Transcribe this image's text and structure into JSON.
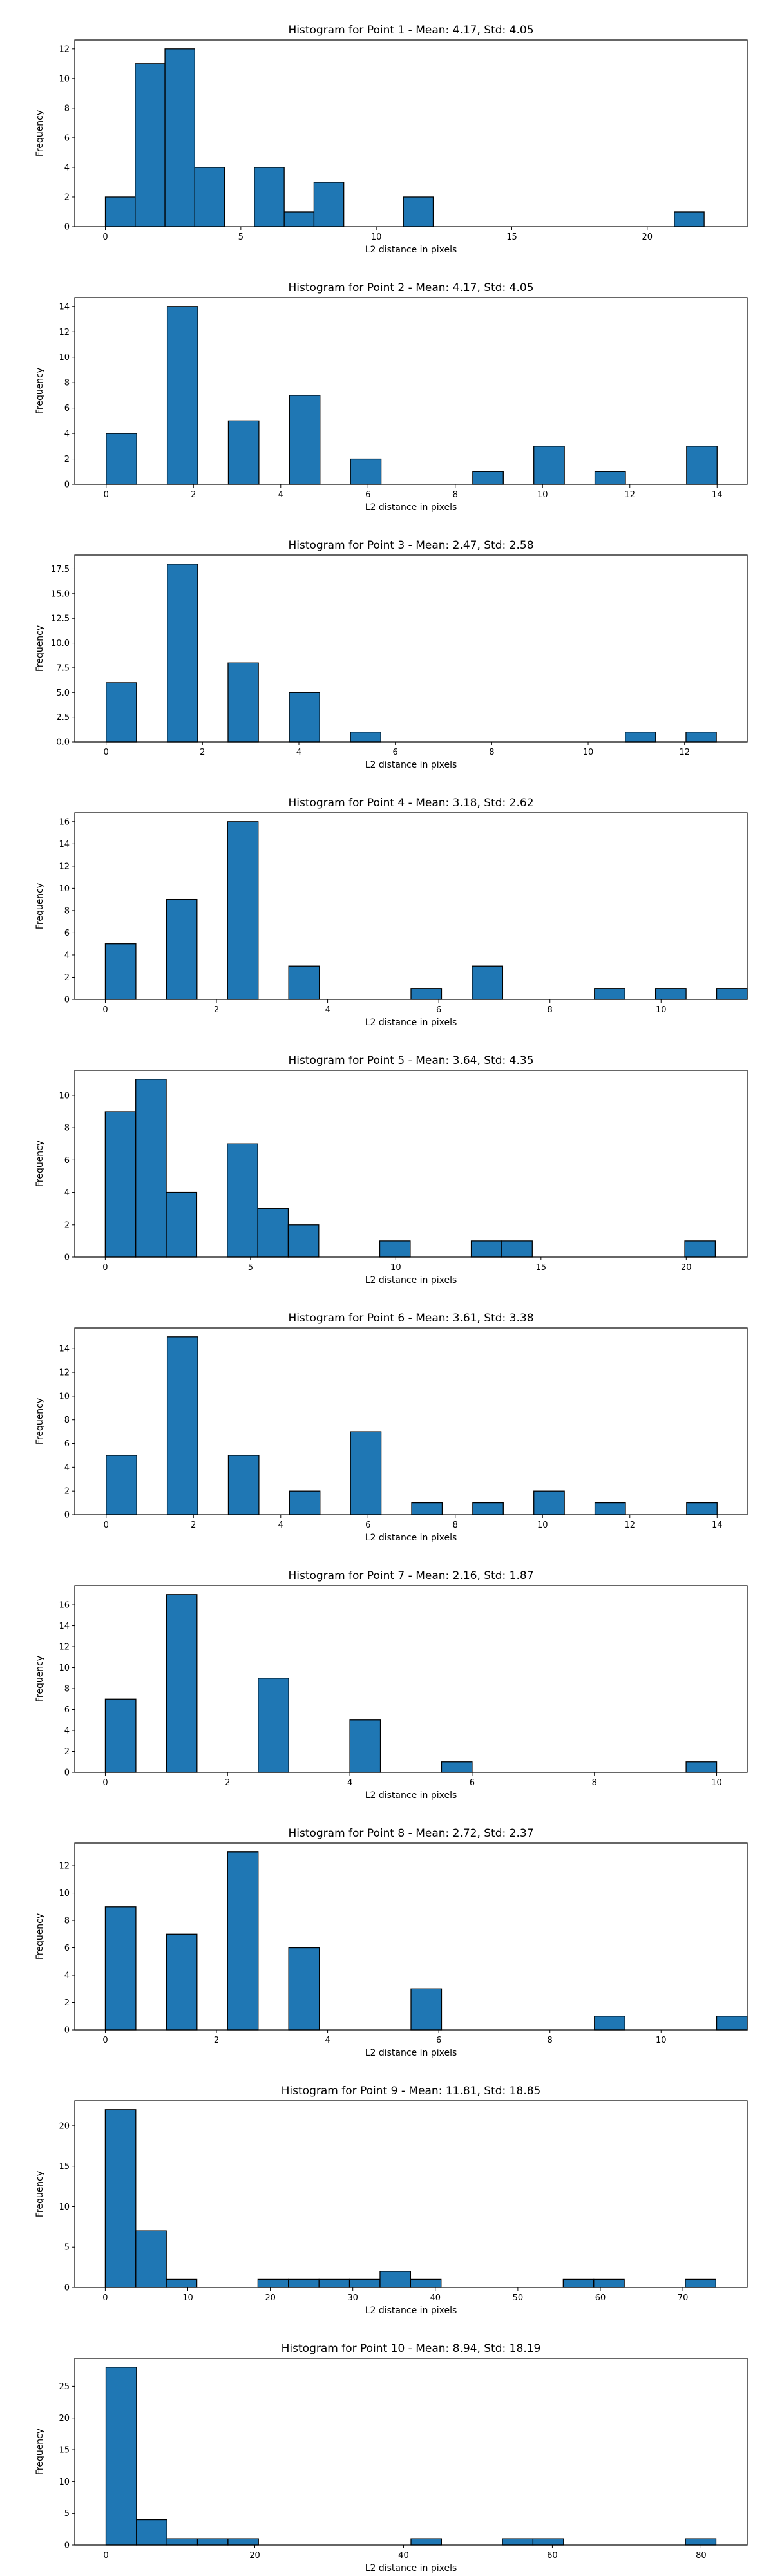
{
  "chart_data": [
    {
      "type": "bar",
      "title": "Histogram for Point 1 - Mean: 4.17, Std: 4.05",
      "xlabel": "L2 distance in pixels",
      "ylabel": "Frequency",
      "xlim": [
        -1.13,
        23.69
      ],
      "ylim": [
        0,
        12.6
      ],
      "xticks": [
        "0",
        "5",
        "10",
        "15",
        "20"
      ],
      "xtick_values": [
        0,
        5,
        10,
        15,
        20
      ],
      "yticks": [
        "0",
        "2",
        "4",
        "6",
        "8",
        "10",
        "12"
      ],
      "ytick_values": [
        0,
        2,
        4,
        6,
        8,
        10,
        12
      ],
      "bin_width": 1.1,
      "bin_starts": [
        0,
        1.1,
        2.2,
        3.3,
        5.5,
        6.6,
        7.7,
        11.0,
        21.0
      ],
      "values": [
        2,
        11,
        12,
        4,
        4,
        1,
        3,
        2,
        1
      ]
    },
    {
      "type": "bar",
      "title": "Histogram for Point 2 - Mean: 4.17, Std: 4.05",
      "xlabel": "L2 distance in pixels",
      "ylabel": "Frequency",
      "xlim": [
        -0.72,
        14.69
      ],
      "ylim": [
        0,
        14.7
      ],
      "xticks": [
        "0",
        "2",
        "4",
        "6",
        "8",
        "10",
        "12",
        "14"
      ],
      "xtick_values": [
        0,
        2,
        4,
        6,
        8,
        10,
        12,
        14
      ],
      "yticks": [
        "0",
        "2",
        "4",
        "6",
        "8",
        "10",
        "12",
        "14"
      ],
      "ytick_values": [
        0,
        2,
        4,
        6,
        8,
        10,
        12,
        14
      ],
      "bin_width": 0.7,
      "bin_starts": [
        0,
        1.4,
        2.8,
        4.2,
        5.6,
        8.4,
        9.8,
        11.2,
        13.3
      ],
      "values": [
        4,
        14,
        5,
        7,
        2,
        1,
        3,
        1,
        3
      ]
    },
    {
      "type": "bar",
      "title": "Histogram for Point 3 - Mean: 2.47, Std: 2.58",
      "xlabel": "L2 distance in pixels",
      "ylabel": "Frequency",
      "xlim": [
        -0.65,
        13.3
      ],
      "ylim": [
        0,
        18.9
      ],
      "xticks": [
        "0",
        "2",
        "4",
        "6",
        "8",
        "10",
        "12"
      ],
      "xtick_values": [
        0,
        2,
        4,
        6,
        8,
        10,
        12
      ],
      "yticks": [
        "0.0",
        "2.5",
        "5.0",
        "7.5",
        "10.0",
        "12.5",
        "15.0",
        "17.5"
      ],
      "ytick_values": [
        0,
        2.5,
        5,
        7.5,
        10,
        12.5,
        15,
        17.5
      ],
      "bin_width": 0.63,
      "bin_starts": [
        0,
        1.27,
        2.53,
        3.8,
        5.07,
        10.77,
        12.03
      ],
      "values": [
        6,
        18,
        8,
        5,
        1,
        1,
        1
      ]
    },
    {
      "type": "bar",
      "title": "Histogram for Point 4 - Mean: 3.18, Std: 2.62",
      "xlabel": "L2 distance in pixels",
      "ylabel": "Frequency",
      "xlim": [
        -0.55,
        11.55
      ],
      "ylim": [
        0,
        16.8
      ],
      "xticks": [
        "0",
        "2",
        "4",
        "6",
        "8",
        "10"
      ],
      "xtick_values": [
        0,
        2,
        4,
        6,
        8,
        10
      ],
      "yticks": [
        "0",
        "2",
        "4",
        "6",
        "8",
        "10",
        "12",
        "14",
        "16"
      ],
      "ytick_values": [
        0,
        2,
        4,
        6,
        8,
        10,
        12,
        14,
        16
      ],
      "bin_width": 0.55,
      "bin_starts": [
        0,
        1.1,
        2.2,
        3.3,
        5.5,
        6.6,
        8.8,
        9.9,
        11.0
      ],
      "values": [
        5,
        9,
        16,
        3,
        1,
        3,
        1,
        1,
        1
      ]
    },
    {
      "type": "bar",
      "title": "Histogram for Point 5 - Mean: 3.64, Std: 4.35",
      "xlabel": "L2 distance in pixels",
      "ylabel": "Frequency",
      "xlim": [
        -1.05,
        22.1
      ],
      "ylim": [
        0,
        11.55
      ],
      "xticks": [
        "0",
        "5",
        "10",
        "15",
        "20"
      ],
      "xtick_values": [
        0,
        5,
        10,
        15,
        20
      ],
      "yticks": [
        "0",
        "2",
        "4",
        "6",
        "8",
        "10"
      ],
      "ytick_values": [
        0,
        2,
        4,
        6,
        8,
        10
      ],
      "bin_width": 1.05,
      "bin_starts": [
        0,
        1.05,
        2.1,
        4.2,
        5.25,
        6.3,
        9.45,
        12.6,
        13.65,
        19.95
      ],
      "values": [
        9,
        11,
        4,
        7,
        3,
        2,
        1,
        1,
        1,
        1
      ]
    },
    {
      "type": "bar",
      "title": "Histogram for Point 6 - Mean: 3.61, Std: 3.38",
      "xlabel": "L2 distance in pixels",
      "ylabel": "Frequency",
      "xlim": [
        -0.72,
        14.69
      ],
      "ylim": [
        0,
        15.75
      ],
      "xticks": [
        "0",
        "2",
        "4",
        "6",
        "8",
        "10",
        "12",
        "14"
      ],
      "xtick_values": [
        0,
        2,
        4,
        6,
        8,
        10,
        12,
        14
      ],
      "yticks": [
        "0",
        "2",
        "4",
        "6",
        "8",
        "10",
        "12",
        "14"
      ],
      "ytick_values": [
        0,
        2,
        4,
        6,
        8,
        10,
        12,
        14
      ],
      "bin_width": 0.7,
      "bin_starts": [
        0,
        1.4,
        2.8,
        4.2,
        5.6,
        7.0,
        8.4,
        9.8,
        11.2,
        13.3
      ],
      "values": [
        5,
        15,
        5,
        2,
        7,
        1,
        1,
        2,
        1,
        1
      ]
    },
    {
      "type": "bar",
      "title": "Histogram for Point 7 - Mean: 2.16, Std: 1.87",
      "xlabel": "L2 distance in pixels",
      "ylabel": "Frequency",
      "xlim": [
        -0.5,
        10.5
      ],
      "ylim": [
        0,
        17.85
      ],
      "xticks": [
        "0",
        "2",
        "4",
        "6",
        "8",
        "10"
      ],
      "xtick_values": [
        0,
        2,
        4,
        6,
        8,
        10
      ],
      "yticks": [
        "0",
        "2",
        "4",
        "6",
        "8",
        "10",
        "12",
        "14",
        "16"
      ],
      "ytick_values": [
        0,
        2,
        4,
        6,
        8,
        10,
        12,
        14,
        16
      ],
      "bin_width": 0.5,
      "bin_starts": [
        0,
        1.0,
        2.5,
        4.0,
        5.5,
        9.5
      ],
      "values": [
        7,
        17,
        9,
        5,
        1,
        1
      ]
    },
    {
      "type": "bar",
      "title": "Histogram for Point 8 - Mean: 2.72, Std: 2.37",
      "xlabel": "L2 distance in pixels",
      "ylabel": "Frequency",
      "xlim": [
        -0.55,
        11.55
      ],
      "ylim": [
        0,
        13.65
      ],
      "xticks": [
        "0",
        "2",
        "4",
        "6",
        "8",
        "10"
      ],
      "xtick_values": [
        0,
        2,
        4,
        6,
        8,
        10
      ],
      "yticks": [
        "0",
        "2",
        "4",
        "6",
        "8",
        "10",
        "12"
      ],
      "ytick_values": [
        0,
        2,
        4,
        6,
        8,
        10,
        12
      ],
      "bin_width": 0.55,
      "bin_starts": [
        0,
        1.1,
        2.2,
        3.3,
        5.5,
        8.8,
        11.0
      ],
      "values": [
        9,
        7,
        13,
        6,
        3,
        1,
        1
      ]
    },
    {
      "type": "bar",
      "title": "Histogram for Point 9 - Mean: 11.81, Std: 18.85",
      "xlabel": "L2 distance in pixels",
      "ylabel": "Frequency",
      "xlim": [
        -3.7,
        77.8
      ],
      "ylim": [
        0,
        23.1
      ],
      "xticks": [
        "0",
        "10",
        "20",
        "30",
        "40",
        "50",
        "60",
        "70"
      ],
      "xtick_values": [
        0,
        10,
        20,
        30,
        40,
        50,
        60,
        70
      ],
      "yticks": [
        "0",
        "5",
        "10",
        "15",
        "20"
      ],
      "ytick_values": [
        0,
        5,
        10,
        15,
        20
      ],
      "bin_width": 3.7,
      "bin_starts": [
        0,
        3.7,
        7.4,
        18.5,
        22.2,
        25.9,
        29.6,
        33.3,
        37.0,
        55.5,
        59.2,
        70.3
      ],
      "values": [
        22,
        7,
        1,
        1,
        1,
        1,
        1,
        2,
        1,
        1,
        1,
        1
      ]
    },
    {
      "type": "bar",
      "title": "Histogram for Point 10 - Mean: 8.94, Std: 18.19",
      "xlabel": "L2 distance in pixels",
      "ylabel": "Frequency",
      "xlim": [
        -4.2,
        86.2
      ],
      "ylim": [
        0,
        29.4
      ],
      "xticks": [
        "0",
        "20",
        "40",
        "60",
        "80"
      ],
      "xtick_values": [
        0,
        20,
        40,
        60,
        80
      ],
      "yticks": [
        "0",
        "5",
        "10",
        "15",
        "20",
        "25"
      ],
      "ytick_values": [
        0,
        5,
        10,
        15,
        20,
        25
      ],
      "bin_width": 4.1,
      "bin_starts": [
        0,
        4.1,
        8.2,
        12.3,
        16.4,
        41.0,
        53.3,
        57.4,
        77.9
      ],
      "values": [
        28,
        4,
        1,
        1,
        1,
        1,
        1,
        1,
        1
      ]
    }
  ],
  "colors": {
    "bar_fill": "#1f77b4",
    "bar_edge": "#000000",
    "axis": "#000000",
    "background": "#ffffff"
  }
}
